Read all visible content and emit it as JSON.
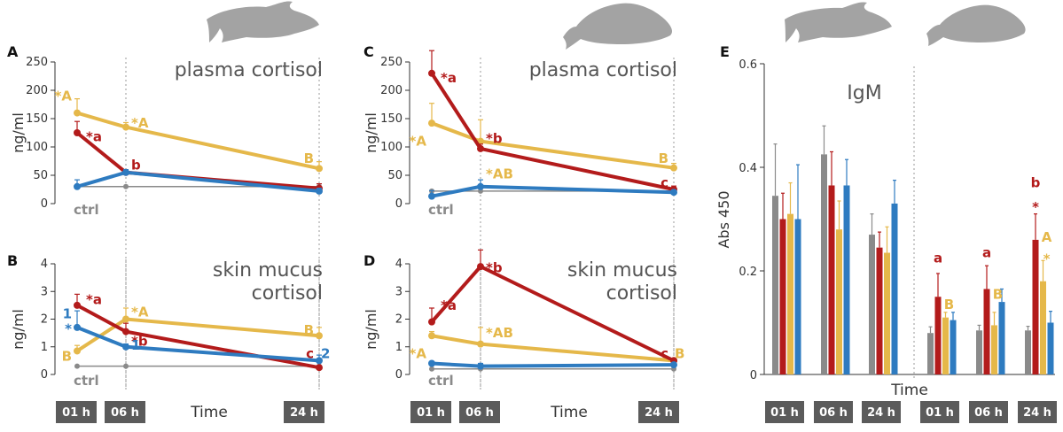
{
  "colors": {
    "gray": "#8a8a8a",
    "red": "#b31b1b",
    "yellow": "#e5b84a",
    "blue": "#2e7bc0",
    "box": "#5b5b5b"
  },
  "time_boxes": [
    "01 h",
    "06 h",
    "24 h"
  ],
  "time_label": "Time",
  "ctrl_label": "ctrl",
  "chart_data": [
    {
      "panel": "A",
      "type": "line",
      "title": "plasma cortisol",
      "ylabel": "ng/ml",
      "ylim": [
        0,
        250
      ],
      "yticks": [
        0,
        50,
        100,
        150,
        200,
        250
      ],
      "x": [
        1,
        6,
        24
      ],
      "series": [
        {
          "name": "ctrl",
          "color": "gray",
          "values": [
            30,
            30,
            30
          ],
          "err": [
            0,
            0,
            0
          ]
        },
        {
          "name": "yellow",
          "color": "yellow",
          "values": [
            160,
            135,
            62
          ],
          "err": [
            25,
            8,
            12
          ]
        },
        {
          "name": "red",
          "color": "red",
          "values": [
            125,
            55,
            27
          ],
          "err": [
            20,
            5,
            8
          ]
        },
        {
          "name": "blue",
          "color": "blue",
          "values": [
            30,
            55,
            22
          ],
          "err": [
            12,
            5,
            5
          ]
        }
      ],
      "annotations": [
        {
          "text": "*A",
          "color": "yellow",
          "x": 1,
          "y": 190
        },
        {
          "text": "*A",
          "color": "yellow",
          "x": 6,
          "y": 142
        },
        {
          "text": "*a",
          "color": "red",
          "x": 1,
          "y": 118
        },
        {
          "text": "b",
          "color": "red",
          "x": 6,
          "y": 68
        },
        {
          "text": "B",
          "color": "yellow",
          "x": 24,
          "y": 80
        }
      ]
    },
    {
      "panel": "B",
      "type": "line",
      "title": "skin mucus cortisol",
      "ylabel": "ng/ml",
      "ylim": [
        0,
        4
      ],
      "yticks": [
        0,
        1,
        2,
        3,
        4
      ],
      "x": [
        1,
        6,
        24
      ],
      "series": [
        {
          "name": "ctrl",
          "color": "gray",
          "values": [
            0.3,
            0.3,
            0.3
          ],
          "err": [
            0,
            0,
            0
          ]
        },
        {
          "name": "yellow",
          "color": "yellow",
          "values": [
            0.85,
            2.0,
            1.4
          ],
          "err": [
            0.2,
            0.4,
            0.3
          ]
        },
        {
          "name": "red",
          "color": "red",
          "values": [
            2.5,
            1.55,
            0.25
          ],
          "err": [
            0.4,
            0.3,
            0.05
          ]
        },
        {
          "name": "blue",
          "color": "blue",
          "values": [
            1.7,
            1.0,
            0.5
          ],
          "err": [
            0.6,
            0.1,
            0.2
          ]
        }
      ],
      "annotations": [
        {
          "text": "*a",
          "color": "red",
          "x": 1,
          "y": 2.7
        },
        {
          "text": "1",
          "color": "blue",
          "x": 1,
          "y": 2.2
        },
        {
          "text": "*",
          "color": "blue",
          "x": 1,
          "y": 1.65
        },
        {
          "text": "B",
          "color": "yellow",
          "x": 1,
          "y": 0.65
        },
        {
          "text": "*A",
          "color": "yellow",
          "x": 6,
          "y": 2.25
        },
        {
          "text": "*b",
          "color": "red",
          "x": 6,
          "y": 1.2
        },
        {
          "text": "1",
          "color": "blue",
          "x": 6,
          "y": 1.05
        },
        {
          "text": "B",
          "color": "yellow",
          "x": 24,
          "y": 1.6
        },
        {
          "text": "c",
          "color": "red",
          "x": 24,
          "y": 0.75
        },
        {
          "text": "2",
          "color": "blue",
          "x": 24,
          "y": 0.75
        }
      ]
    },
    {
      "panel": "C",
      "type": "line",
      "title": "plasma cortisol",
      "ylabel": "ng/ml",
      "ylim": [
        0,
        250
      ],
      "yticks": [
        0,
        50,
        100,
        150,
        200,
        250
      ],
      "x": [
        1,
        6,
        24
      ],
      "series": [
        {
          "name": "ctrl",
          "color": "gray",
          "values": [
            22,
            22,
            22
          ],
          "err": [
            0,
            0,
            0
          ]
        },
        {
          "name": "yellow",
          "color": "yellow",
          "values": [
            142,
            110,
            63
          ],
          "err": [
            35,
            38,
            8
          ]
        },
        {
          "name": "red",
          "color": "red",
          "values": [
            230,
            97,
            25
          ],
          "err": [
            40,
            8,
            6
          ]
        },
        {
          "name": "blue",
          "color": "blue",
          "values": [
            13,
            30,
            20
          ],
          "err": [
            10,
            12,
            4
          ]
        }
      ],
      "annotations": [
        {
          "text": "*a",
          "color": "red",
          "x": 1,
          "y": 222
        },
        {
          "text": "*A",
          "color": "yellow",
          "x": 1,
          "y": 110
        },
        {
          "text": "*b",
          "color": "red",
          "x": 6,
          "y": 115
        },
        {
          "text": "*AB",
          "color": "yellow",
          "x": 6,
          "y": 52
        },
        {
          "text": "B",
          "color": "yellow",
          "x": 24,
          "y": 80
        },
        {
          "text": "c",
          "color": "red",
          "x": 24,
          "y": 37
        }
      ]
    },
    {
      "panel": "D",
      "type": "line",
      "title": "skin mucus cortisol",
      "ylabel": "ng/ml",
      "ylim": [
        0,
        4
      ],
      "yticks": [
        0,
        1,
        2,
        3,
        4
      ],
      "x": [
        1,
        6,
        24
      ],
      "series": [
        {
          "name": "ctrl",
          "color": "gray",
          "values": [
            0.2,
            0.2,
            0.2
          ],
          "err": [
            0,
            0,
            0
          ]
        },
        {
          "name": "yellow",
          "color": "yellow",
          "values": [
            1.4,
            1.1,
            0.5
          ],
          "err": [
            0.15,
            0.6,
            0.05
          ]
        },
        {
          "name": "red",
          "color": "red",
          "values": [
            1.9,
            3.9,
            0.5
          ],
          "err": [
            0.5,
            0.6,
            0.05
          ]
        },
        {
          "name": "blue",
          "color": "blue",
          "values": [
            0.4,
            0.3,
            0.35
          ],
          "err": [
            0.05,
            0.1,
            0.05
          ]
        }
      ],
      "annotations": [
        {
          "text": "*a",
          "color": "red",
          "x": 1,
          "y": 2.5
        },
        {
          "text": "*A",
          "color": "yellow",
          "x": 1,
          "y": 0.75
        },
        {
          "text": "*b",
          "color": "red",
          "x": 6,
          "y": 3.85
        },
        {
          "text": "*AB",
          "color": "yellow",
          "x": 6,
          "y": 1.5
        },
        {
          "text": "c",
          "color": "red",
          "x": 24,
          "y": 0.75
        },
        {
          "text": "B",
          "color": "yellow",
          "x": 24,
          "y": 0.75
        }
      ]
    },
    {
      "panel": "E",
      "type": "bar",
      "title": "IgM",
      "ylabel": "Abs 450",
      "xlabel": "Time",
      "ylim": [
        0,
        0.6
      ],
      "yticks": [
        0,
        0.2,
        0.4,
        0.6
      ],
      "categories": [
        "01 h",
        "06 h",
        "24 h",
        "01 h",
        "06 h",
        "24 h"
      ],
      "series": [
        {
          "name": "gray",
          "color": "gray",
          "values": [
            0.345,
            0.425,
            0.27,
            0.08,
            0.085,
            0.085
          ],
          "err": [
            0.1,
            0.055,
            0.04,
            0.012,
            0.01,
            0.008
          ]
        },
        {
          "name": "red",
          "color": "red",
          "values": [
            0.3,
            0.365,
            0.245,
            0.15,
            0.165,
            0.26
          ],
          "err": [
            0.05,
            0.065,
            0.03,
            0.045,
            0.045,
            0.05
          ]
        },
        {
          "name": "yellow",
          "color": "yellow",
          "values": [
            0.31,
            0.28,
            0.235,
            0.11,
            0.095,
            0.18
          ],
          "err": [
            0.06,
            0.055,
            0.05,
            0.01,
            0.025,
            0.04
          ]
        },
        {
          "name": "blue",
          "color": "blue",
          "values": [
            0.3,
            0.365,
            0.33,
            0.105,
            0.14,
            0.1
          ],
          "err": [
            0.105,
            0.05,
            0.045,
            0.015,
            0.025,
            0.022
          ]
        }
      ],
      "annotations": [
        {
          "text": "a",
          "color": "red",
          "group": 3,
          "y": 0.225
        },
        {
          "text": "B",
          "color": "yellow",
          "group": 3,
          "y": 0.135
        },
        {
          "text": "a",
          "color": "red",
          "group": 4,
          "y": 0.235
        },
        {
          "text": "B",
          "color": "yellow",
          "group": 4,
          "y": 0.155
        },
        {
          "text": "b",
          "color": "red",
          "group": 5,
          "y": 0.37
        },
        {
          "text": "*",
          "color": "red",
          "group": 5,
          "y": 0.335
        },
        {
          "text": "A",
          "color": "yellow",
          "group": 5,
          "y": 0.265
        },
        {
          "text": "*",
          "color": "yellow",
          "group": 5,
          "y": 0.235
        }
      ]
    }
  ]
}
